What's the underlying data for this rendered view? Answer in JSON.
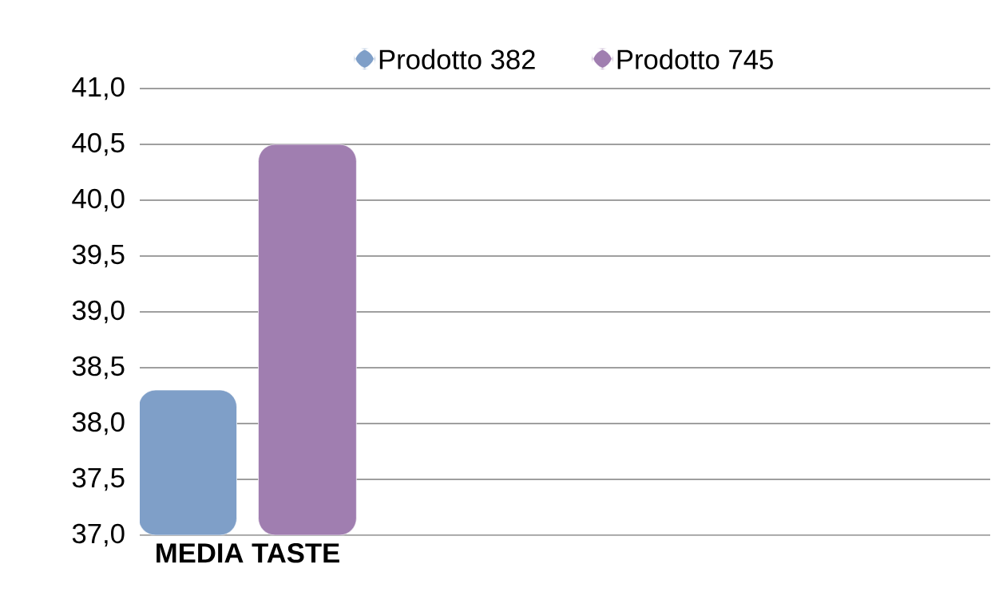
{
  "chart_data": {
    "type": "bar",
    "categories": [
      "MEDIA TASTE"
    ],
    "series": [
      {
        "name": "Prodotto 382",
        "color": "#7f9fc8",
        "values": [
          38.3
        ]
      },
      {
        "name": "Prodotto 745",
        "color": "#a07eb0",
        "values": [
          40.5
        ]
      }
    ],
    "ylim": [
      37,
      41
    ],
    "yticks": [
      {
        "value": 37,
        "label": "37,0"
      },
      {
        "value": 37.5,
        "label": "37,5"
      },
      {
        "value": 38,
        "label": "38,0"
      },
      {
        "value": 38.5,
        "label": "38,5"
      },
      {
        "value": 39,
        "label": "39,0"
      },
      {
        "value": 39.5,
        "label": "39,5"
      },
      {
        "value": 40,
        "label": "40,0"
      },
      {
        "value": 40.5,
        "label": "40,5"
      },
      {
        "value": 41,
        "label": "41,0"
      }
    ],
    "grid": "y",
    "legend": "top"
  }
}
